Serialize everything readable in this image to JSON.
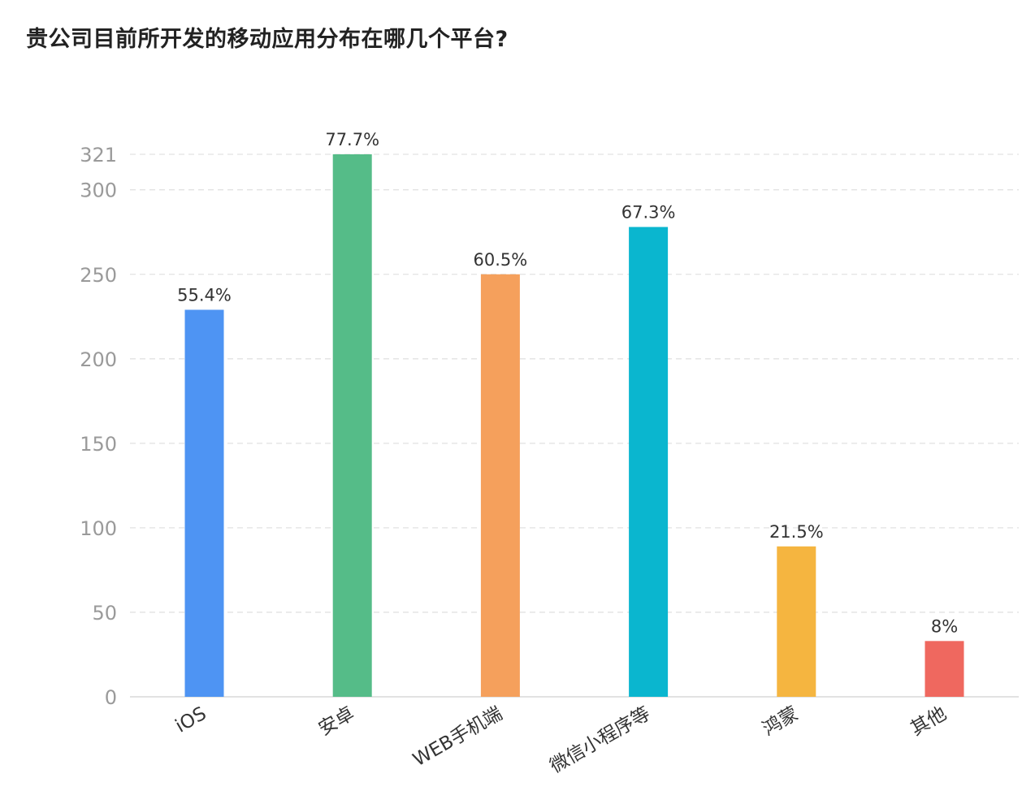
{
  "chart_data": {
    "type": "bar",
    "title": "贵公司目前所开发的移动应用分布在哪几个平台?",
    "xlabel": "",
    "ylabel": "",
    "categories": [
      "iOS",
      "安卓",
      "WEB手机端",
      "微信小程序等",
      "鸿蒙",
      "其他"
    ],
    "values": [
      229,
      321,
      250,
      278,
      89,
      33
    ],
    "data_labels": [
      "55.4%",
      "77.7%",
      "60.5%",
      "67.3%",
      "21.5%",
      "8%"
    ],
    "colors": [
      "#4e94f3",
      "#55bc88",
      "#f5a05c",
      "#0ab6cf",
      "#f5b540",
      "#ef685f"
    ],
    "ylim": [
      0,
      321
    ],
    "yticks": [
      0,
      50,
      100,
      150,
      200,
      250,
      300,
      321
    ],
    "grid": true,
    "legend": "none"
  }
}
